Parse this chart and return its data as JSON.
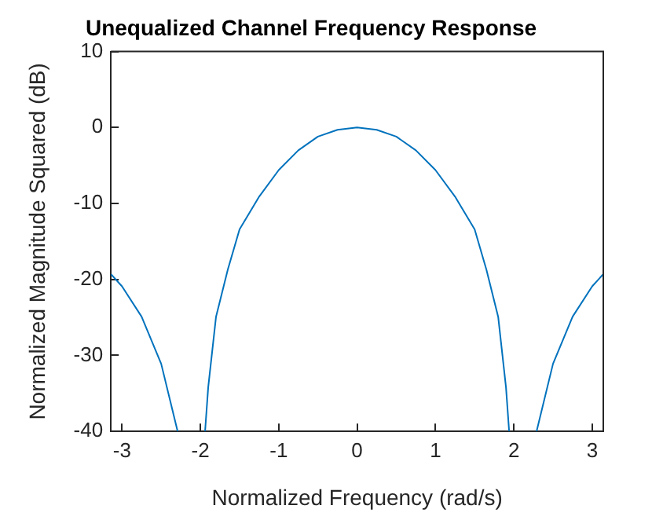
{
  "chart_data": {
    "type": "line",
    "title": "Unequalized Channel Frequency Response",
    "xlabel": "Normalized Frequency (rad/s)",
    "ylabel": "Normalized Magnitude Squared (dB)",
    "x": [
      -3.1416,
      -3.0,
      -2.75,
      -2.5,
      -2.29,
      -2.1,
      -1.94,
      -1.9,
      -1.8,
      -1.65,
      -1.5,
      -1.25,
      -1.0,
      -0.75,
      -0.5,
      -0.25,
      0,
      0.25,
      0.5,
      0.75,
      1.0,
      1.25,
      1.5,
      1.65,
      1.8,
      1.9,
      1.94,
      2.1,
      2.29,
      2.5,
      2.75,
      3.0,
      3.1416
    ],
    "series": [
      {
        "color": "#0072bd",
        "values": [
          -19.3,
          -20.9,
          -24.9,
          -31.1,
          -40,
          null,
          -40,
          -34.2,
          -24.9,
          -18.7,
          -13.4,
          -9.1,
          -5.6,
          -3.0,
          -1.2,
          -0.3,
          0,
          -0.3,
          -1.2,
          -3.0,
          -5.6,
          -9.1,
          -13.4,
          -18.7,
          -24.9,
          -34.2,
          -40,
          null,
          -40,
          -31.1,
          -24.9,
          -20.9,
          -19.3
        ]
      }
    ],
    "xlim": [
      -3.1416,
      3.1416
    ],
    "xticks": [
      -3,
      -2,
      -1,
      0,
      1,
      2,
      3
    ],
    "ylim": [
      -40,
      10
    ],
    "yticks": [
      -40,
      -30,
      -20,
      -10,
      0,
      10
    ],
    "grid": false,
    "legend": false,
    "marker": "none",
    "line_style": "solid"
  }
}
